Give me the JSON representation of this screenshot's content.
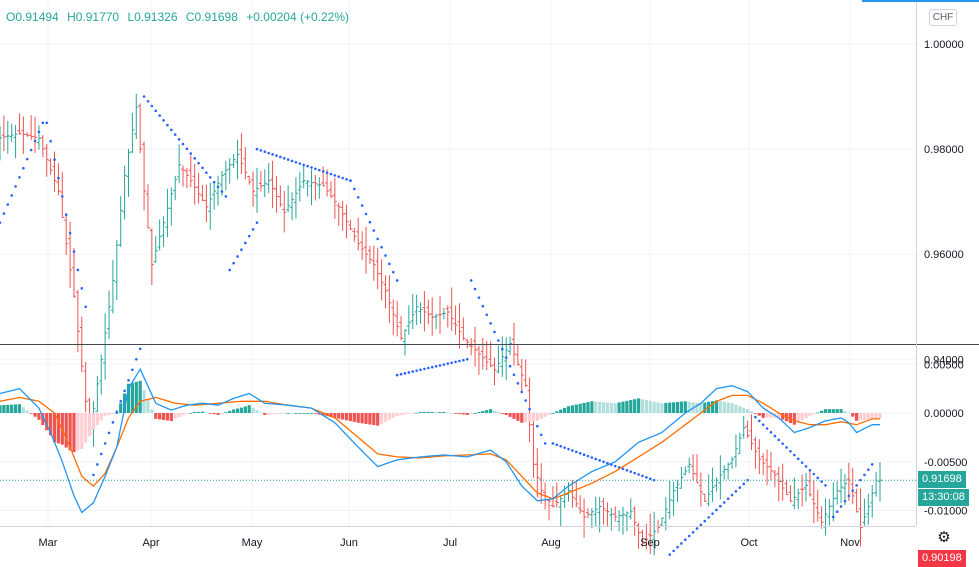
{
  "legend": {
    "open": "O0.91494",
    "high": "H0.91770",
    "low": "L0.91326",
    "close": "C0.91698",
    "change": "+0.00204 (+0.22%)"
  },
  "currency": "CHF",
  "price_tags": {
    "last": "0.91698",
    "countdown": "13:30:08",
    "level": "0.90198"
  },
  "sar_label": "SAR",
  "colors": {
    "up": "#26a69a",
    "down": "#ef5350",
    "sar_dots": "#2962ff",
    "macd_line": "#2196f3",
    "signal_line": "#ff6d00",
    "hist_up_strong": "#26a69a",
    "hist_up_weak": "#b2dfdb",
    "hist_down_strong": "#ef5350",
    "hist_down_weak": "#ffcdd2",
    "level_line": "#f23645"
  },
  "chart_data": [
    {
      "type": "candlestick",
      "axis_position": "right",
      "ylim": [
        0.9,
        1.0
      ],
      "ytick_values": [
        0.94,
        0.96,
        0.98,
        1.0
      ],
      "ytick_labels": [
        "0.94000",
        "0.96000",
        "0.98000",
        "1.00000"
      ],
      "grid": true,
      "x_labels": [
        "Mar",
        "Apr",
        "May",
        "Jun",
        "Jul",
        "Aug",
        "Sep",
        "Oct",
        "Nov"
      ],
      "horizontal_level": 0.90198,
      "last_price": 0.91698,
      "overlays": [
        "Parabolic SAR"
      ],
      "price_path": [
        [
          0,
          0.982
        ],
        [
          6,
          0.983
        ],
        [
          11,
          0.982
        ],
        [
          16,
          0.972
        ],
        [
          20,
          0.952
        ],
        [
          23,
          0.932
        ],
        [
          24,
          0.926
        ],
        [
          27,
          0.94
        ],
        [
          30,
          0.955
        ],
        [
          33,
          0.975
        ],
        [
          36,
          0.988
        ],
        [
          38,
          0.972
        ],
        [
          40,
          0.958
        ],
        [
          43,
          0.966
        ],
        [
          47,
          0.977
        ],
        [
          50,
          0.974
        ],
        [
          54,
          0.969
        ],
        [
          58,
          0.975
        ],
        [
          62,
          0.979
        ],
        [
          66,
          0.972
        ],
        [
          70,
          0.974
        ],
        [
          74,
          0.968
        ],
        [
          79,
          0.974
        ],
        [
          84,
          0.973
        ],
        [
          88,
          0.969
        ],
        [
          93,
          0.962
        ],
        [
          97,
          0.958
        ],
        [
          100,
          0.953
        ],
        [
          104,
          0.944
        ],
        [
          108,
          0.95
        ],
        [
          112,
          0.948
        ],
        [
          116,
          0.949
        ],
        [
          120,
          0.944
        ],
        [
          124,
          0.941
        ],
        [
          128,
          0.938
        ],
        [
          132,
          0.943
        ],
        [
          136,
          0.935
        ],
        [
          138,
          0.92
        ],
        [
          140,
          0.915
        ],
        [
          143,
          0.912
        ],
        [
          147,
          0.915
        ],
        [
          151,
          0.91
        ],
        [
          155,
          0.912
        ],
        [
          159,
          0.91
        ],
        [
          163,
          0.911
        ],
        [
          166,
          0.905
        ],
        [
          170,
          0.908
        ],
        [
          174,
          0.915
        ],
        [
          178,
          0.92
        ],
        [
          182,
          0.913
        ],
        [
          185,
          0.917
        ],
        [
          189,
          0.921
        ],
        [
          192,
          0.927
        ],
        [
          196,
          0.921
        ],
        [
          200,
          0.918
        ],
        [
          204,
          0.913
        ],
        [
          208,
          0.916
        ],
        [
          212,
          0.909
        ],
        [
          216,
          0.915
        ],
        [
          219,
          0.917
        ],
        [
          222,
          0.908
        ],
        [
          224,
          0.912
        ],
        [
          226,
          0.917
        ]
      ],
      "psar_segments": [
        {
          "from": [
            0,
            0.966
          ],
          "to": [
            11,
            0.985
          ]
        },
        {
          "from": [
            12,
            0.985
          ],
          "to": [
            22,
            0.95
          ]
        },
        {
          "from": [
            24,
            0.918
          ],
          "to": [
            36,
            0.942
          ]
        },
        {
          "from": [
            37,
            0.99
          ],
          "to": [
            58,
            0.971
          ]
        },
        {
          "from": [
            59,
            0.957
          ],
          "to": [
            66,
            0.966
          ]
        },
        {
          "from": [
            66,
            0.98
          ],
          "to": [
            90,
            0.974
          ]
        },
        {
          "from": [
            90,
            0.974
          ],
          "to": [
            102,
            0.955
          ]
        },
        {
          "from": [
            102,
            0.937
          ],
          "to": [
            120,
            0.94
          ]
        },
        {
          "from": [
            121,
            0.955
          ],
          "to": [
            140,
            0.924
          ]
        },
        {
          "from": [
            142,
            0.924
          ],
          "to": [
            168,
            0.917
          ]
        },
        {
          "from": [
            168,
            0.9
          ],
          "to": [
            192,
            0.917
          ]
        },
        {
          "from": [
            194,
            0.929
          ],
          "to": [
            212,
            0.916
          ]
        },
        {
          "from": [
            214,
            0.91
          ],
          "to": [
            224,
            0.92
          ]
        }
      ]
    },
    {
      "type": "macd",
      "axis_position": "right",
      "ylim": [
        -0.0108,
        0.0072
      ],
      "ytick_values": [
        0.005,
        0.0,
        -0.005,
        -0.01
      ],
      "ytick_labels": [
        "0.00500",
        "0.00000",
        "-0.00500",
        "-0.01000"
      ],
      "grid": true,
      "x_labels": [
        "Mar",
        "Apr",
        "May",
        "Jun",
        "Jul",
        "Aug",
        "Sep",
        "Oct",
        "Nov"
      ],
      "series": [
        {
          "points": [
            [
              0,
              0.002
            ],
            [
              5,
              0.0025
            ],
            [
              10,
              0.0005
            ],
            [
              13,
              -0.002
            ],
            [
              16,
              -0.005
            ],
            [
              19,
              -0.0085
            ],
            [
              21,
              -0.0102
            ],
            [
              24,
              -0.0092
            ],
            [
              27,
              -0.0065
            ],
            [
              30,
              -0.0035
            ],
            [
              33,
              0.0025
            ],
            [
              36,
              0.0045
            ],
            [
              40,
              0.001
            ],
            [
              44,
              0.0003
            ],
            [
              48,
              0.0008
            ],
            [
              52,
              0.001
            ],
            [
              56,
              0.0008
            ],
            [
              60,
              0.0015
            ],
            [
              64,
              0.002
            ],
            [
              68,
              0.001
            ],
            [
              74,
              0.0008
            ],
            [
              80,
              0.0005
            ],
            [
              86,
              -0.001
            ],
            [
              92,
              -0.0035
            ],
            [
              97,
              -0.0055
            ],
            [
              102,
              -0.0048
            ],
            [
              108,
              -0.0045
            ],
            [
              114,
              -0.0043
            ],
            [
              120,
              -0.0045
            ],
            [
              126,
              -0.0038
            ],
            [
              130,
              -0.005
            ],
            [
              134,
              -0.0075
            ],
            [
              138,
              -0.009
            ],
            [
              142,
              -0.0088
            ],
            [
              146,
              -0.0075
            ],
            [
              152,
              -0.006
            ],
            [
              158,
              -0.005
            ],
            [
              164,
              -0.003
            ],
            [
              170,
              -0.002
            ],
            [
              176,
              0.0
            ],
            [
              180,
              0.001
            ],
            [
              184,
              0.0025
            ],
            [
              188,
              0.0028
            ],
            [
              192,
              0.0022
            ],
            [
              196,
              0.0005
            ],
            [
              200,
              -0.0005
            ],
            [
              204,
              -0.002
            ],
            [
              208,
              -0.0015
            ],
            [
              212,
              -0.0008
            ],
            [
              216,
              -0.0005
            ],
            [
              218,
              -0.001
            ],
            [
              220,
              -0.002
            ],
            [
              224,
              -0.0012
            ]
          ]
        },
        {
          "points": [
            [
              0,
              0.0012
            ],
            [
              5,
              0.0016
            ],
            [
              10,
              0.0012
            ],
            [
              14,
              0.0
            ],
            [
              18,
              -0.0035
            ],
            [
              21,
              -0.0065
            ],
            [
              24,
              -0.0075
            ],
            [
              27,
              -0.0062
            ],
            [
              30,
              -0.0035
            ],
            [
              33,
              -0.0005
            ],
            [
              36,
              0.0012
            ],
            [
              40,
              0.0016
            ],
            [
              45,
              0.001
            ],
            [
              50,
              0.0008
            ],
            [
              56,
              0.001
            ],
            [
              62,
              0.0012
            ],
            [
              68,
              0.0012
            ],
            [
              74,
              0.0008
            ],
            [
              80,
              0.0005
            ],
            [
              86,
              -0.0005
            ],
            [
              92,
              -0.0025
            ],
            [
              97,
              -0.0042
            ],
            [
              102,
              -0.0045
            ],
            [
              108,
              -0.0046
            ],
            [
              114,
              -0.0044
            ],
            [
              120,
              -0.0043
            ],
            [
              126,
              -0.0042
            ],
            [
              130,
              -0.0048
            ],
            [
              134,
              -0.0065
            ],
            [
              138,
              -0.0082
            ],
            [
              142,
              -0.0088
            ],
            [
              146,
              -0.0082
            ],
            [
              152,
              -0.0072
            ],
            [
              158,
              -0.006
            ],
            [
              164,
              -0.0045
            ],
            [
              170,
              -0.003
            ],
            [
              176,
              -0.0012
            ],
            [
              180,
              0.0
            ],
            [
              184,
              0.0012
            ],
            [
              188,
              0.0018
            ],
            [
              192,
              0.0018
            ],
            [
              196,
              0.001
            ],
            [
              200,
              0.0
            ],
            [
              204,
              -0.0008
            ],
            [
              208,
              -0.0012
            ],
            [
              212,
              -0.0012
            ],
            [
              216,
              -0.0009
            ],
            [
              220,
              -0.0012
            ],
            [
              224,
              -0.0006
            ]
          ]
        }
      ]
    }
  ]
}
